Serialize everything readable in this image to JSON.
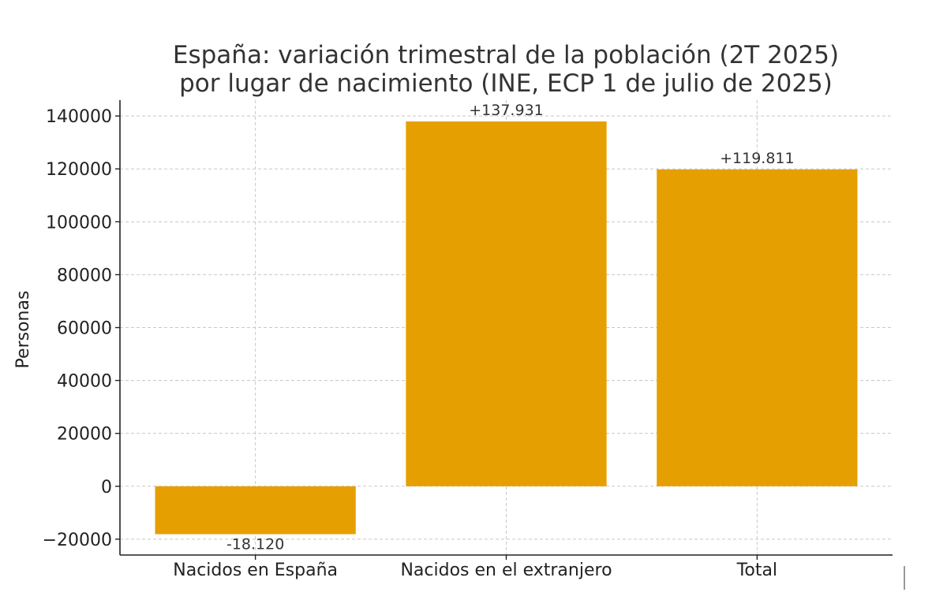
{
  "chart_data": {
    "type": "bar",
    "title": [
      "España: variación trimestral de la población (2T 2025)",
      "por lugar de nacimiento (INE, ECP 1 de julio de 2025)"
    ],
    "xlabel": "",
    "ylabel": "Personas",
    "categories": [
      "Nacidos en España",
      "Nacidos en el extranjero",
      "Total"
    ],
    "values": [
      -18120,
      137931,
      119811
    ],
    "data_labels": [
      "-18.120",
      "+137.931",
      "+119.811"
    ],
    "ylim": [
      -26000,
      146000
    ],
    "yticks": [
      -20000,
      0,
      20000,
      40000,
      60000,
      80000,
      100000,
      120000,
      140000
    ],
    "ytick_labels": [
      "−20000",
      "0",
      "20000",
      "40000",
      "60000",
      "80000",
      "100000",
      "120000",
      "140000"
    ],
    "grid": true,
    "bar_color": "#E69F00"
  }
}
